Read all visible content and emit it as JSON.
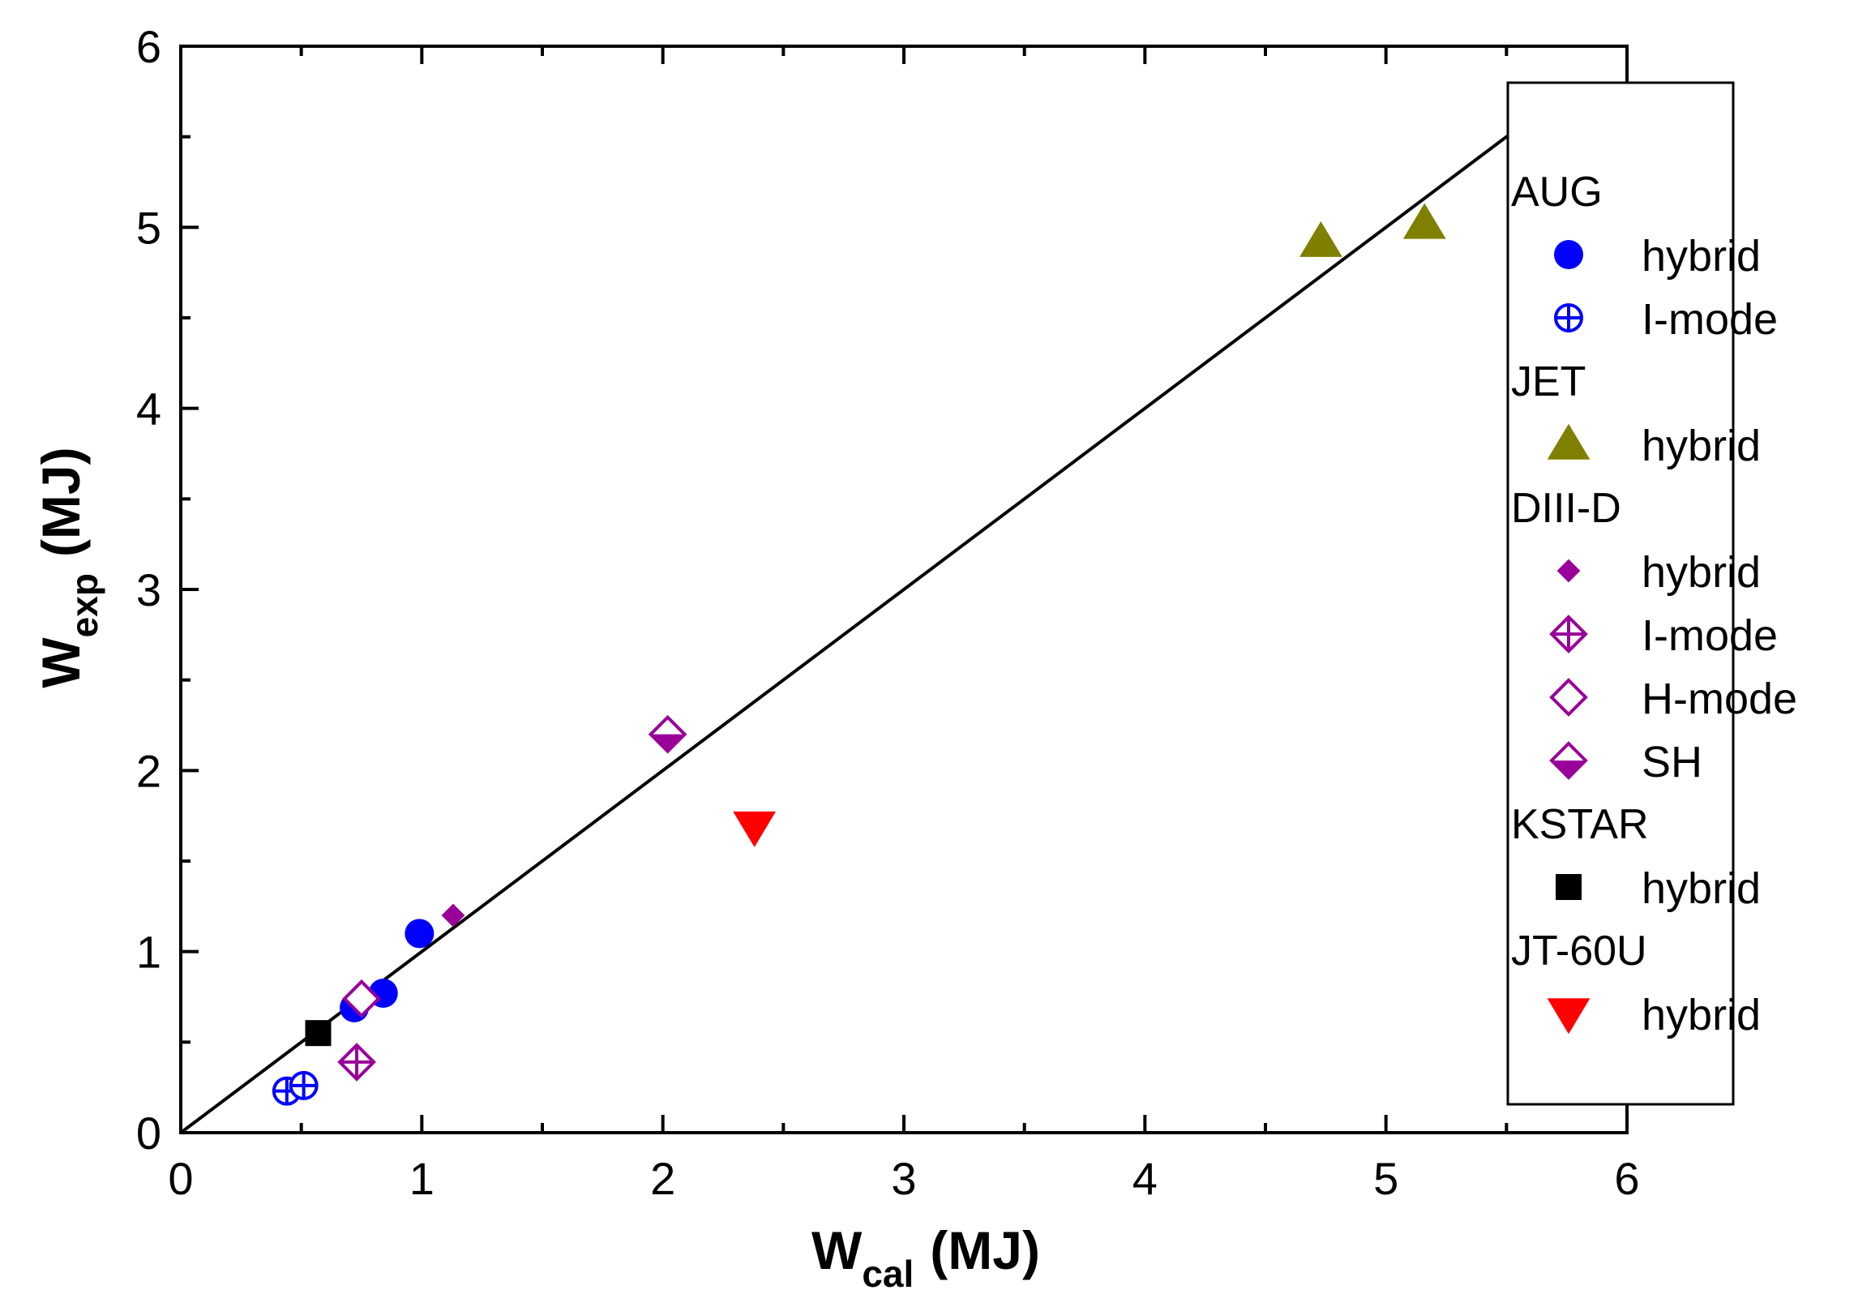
{
  "chart_data": {
    "type": "scatter",
    "xlabel": "W",
    "xlabel_sub": "cal",
    "xlabel_unit": "(MJ)",
    "ylabel": "W",
    "ylabel_sub": "exp",
    "ylabel_unit": "(MJ)",
    "xlim": [
      0,
      6
    ],
    "ylim": [
      0,
      6
    ],
    "xticks": [
      "0",
      "1",
      "2",
      "3",
      "4",
      "5",
      "6"
    ],
    "yticks": [
      "0",
      "1",
      "2",
      "3",
      "4",
      "5",
      "6"
    ],
    "grid": false,
    "legend_position": "right",
    "reference_line": {
      "type": "y=x",
      "from": 0,
      "to": 5.55
    },
    "groups": [
      {
        "name": "AUG",
        "series": [
          {
            "name": "hybrid",
            "marker": "circle-filled",
            "color": "#0000ff",
            "points": [
              [
                0.72,
                0.69
              ],
              [
                0.84,
                0.77
              ],
              [
                0.99,
                1.1
              ]
            ]
          },
          {
            "name": "I-mode",
            "marker": "circle-crossed",
            "color": "#0000ff",
            "points": [
              [
                0.44,
                0.23
              ],
              [
                0.51,
                0.26
              ]
            ]
          }
        ]
      },
      {
        "name": "JET",
        "series": [
          {
            "name": "hybrid",
            "marker": "triangle-up-filled",
            "color": "#808000",
            "points": [
              [
                4.73,
                4.92
              ],
              [
                5.16,
                5.02
              ]
            ]
          }
        ]
      },
      {
        "name": "DIII-D",
        "series": [
          {
            "name": "hybrid",
            "marker": "diamond-small-filled",
            "color": "#990099",
            "points": [
              [
                1.13,
                1.2
              ]
            ]
          },
          {
            "name": "I-mode",
            "marker": "diamond-crossed",
            "color": "#990099",
            "points": [
              [
                0.73,
                0.39
              ]
            ]
          },
          {
            "name": "H-mode",
            "marker": "diamond-open",
            "color": "#990099",
            "points": [
              [
                0.75,
                0.74
              ]
            ]
          },
          {
            "name": "SH",
            "marker": "diamond-half",
            "color": "#990099",
            "points": [
              [
                2.02,
                2.2
              ]
            ]
          }
        ]
      },
      {
        "name": "KSTAR",
        "series": [
          {
            "name": "hybrid",
            "marker": "square-filled",
            "color": "#000000",
            "points": [
              [
                0.57,
                0.55
              ]
            ]
          }
        ]
      },
      {
        "name": "JT-60U",
        "series": [
          {
            "name": "hybrid",
            "marker": "triangle-down-filled",
            "color": "#ff0000",
            "points": [
              [
                2.38,
                1.69
              ]
            ]
          }
        ]
      }
    ]
  }
}
